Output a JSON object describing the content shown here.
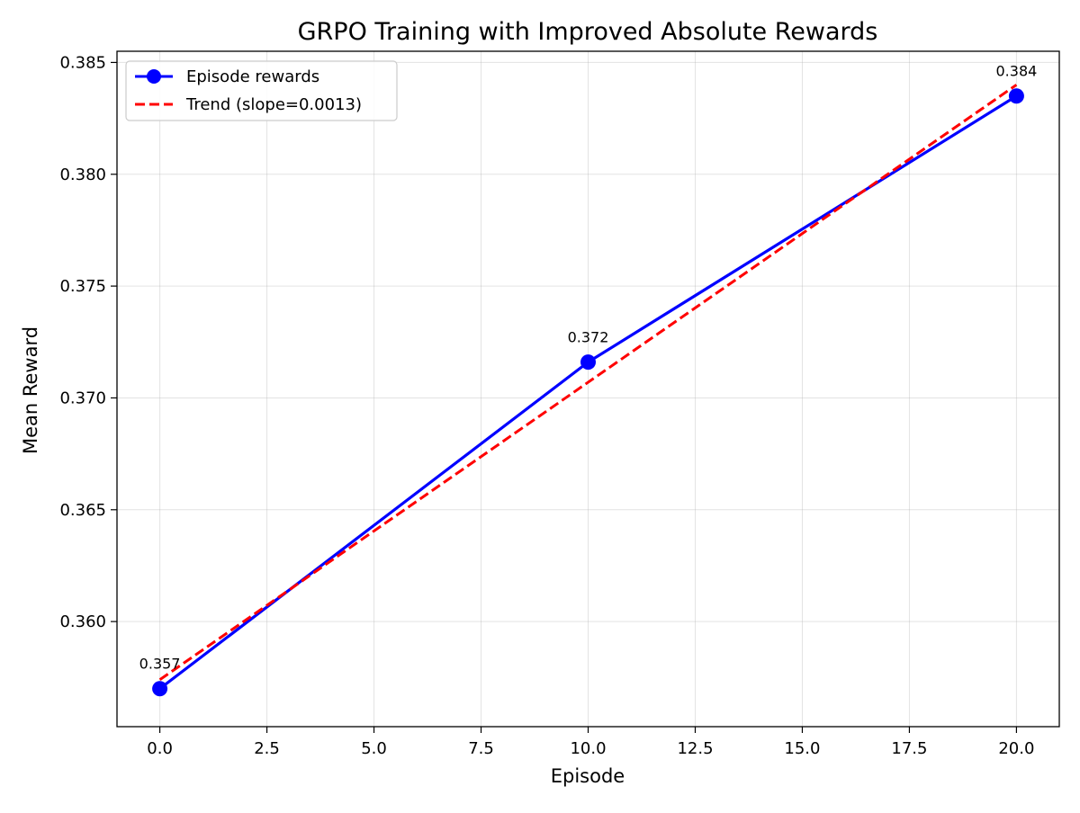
{
  "chart_data": {
    "type": "line",
    "title": "GRPO Training with Improved Absolute Rewards",
    "xlabel": "Episode",
    "ylabel": "Mean Reward",
    "xlim": [
      -1.0,
      21.0
    ],
    "ylim": [
      0.3553,
      0.3855
    ],
    "x_ticks": [
      0.0,
      2.5,
      5.0,
      7.5,
      10.0,
      12.5,
      15.0,
      17.5,
      20.0
    ],
    "x_tick_labels": [
      "0.0",
      "2.5",
      "5.0",
      "7.5",
      "10.0",
      "12.5",
      "15.0",
      "17.5",
      "20.0"
    ],
    "y_ticks": [
      0.36,
      0.365,
      0.37,
      0.375,
      0.38,
      0.385
    ],
    "y_tick_labels": [
      "0.360",
      "0.365",
      "0.370",
      "0.375",
      "0.380",
      "0.385"
    ],
    "grid": true,
    "legend_position": "upper-left",
    "series": [
      {
        "name": "Episode rewards",
        "style": "solid-line-with-markers",
        "color": "#0000ff",
        "x": [
          0,
          10,
          20
        ],
        "y": [
          0.357,
          0.3716,
          0.3835
        ],
        "data_labels": [
          "0.357",
          "0.372",
          "0.384"
        ]
      },
      {
        "name": "Trend (slope=0.0013)",
        "style": "dashed",
        "color": "#ff0000",
        "x": [
          0,
          20
        ],
        "y": [
          0.3574,
          0.384
        ]
      }
    ]
  }
}
